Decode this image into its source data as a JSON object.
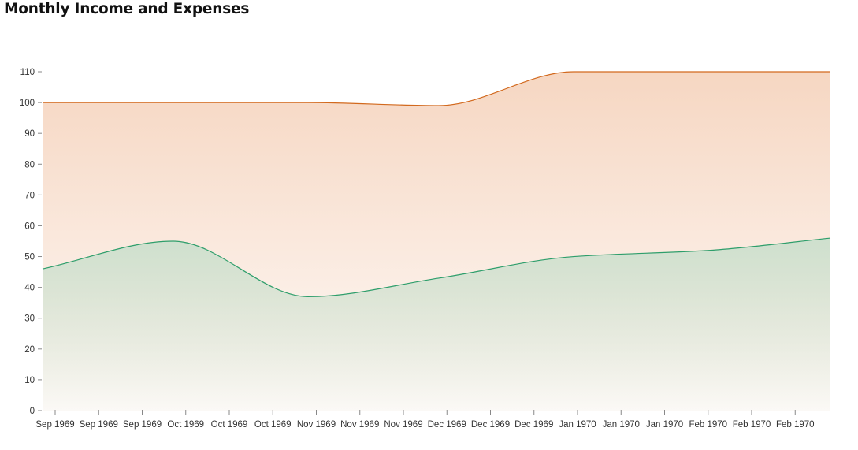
{
  "title": "Monthly Income and Expenses",
  "colors": {
    "income_line": "#d2691e",
    "income_fill": "#f5d2bb",
    "expenses_line": "#2e9e6b",
    "expenses_fill": "#c9dfcc",
    "axis": "#888888",
    "text": "#333333"
  },
  "chart_data": {
    "type": "area",
    "title": "Monthly Income and Expenses",
    "xlabel": "",
    "ylabel": "",
    "ylim": [
      0,
      110
    ],
    "yticks": [
      0,
      10,
      20,
      30,
      40,
      50,
      60,
      70,
      80,
      90,
      100,
      110
    ],
    "x_tick_labels": [
      "Sep 1969",
      "Sep 1969",
      "Sep 1969",
      "Oct 1969",
      "Oct 1969",
      "Oct 1969",
      "Nov 1969",
      "Nov 1969",
      "Nov 1969",
      "Dec 1969",
      "Dec 1969",
      "Dec 1969",
      "Jan 1970",
      "Jan 1970",
      "Jan 1970",
      "Feb 1970",
      "Feb 1970",
      "Feb 1970"
    ],
    "x": [
      "1969-09-01",
      "1969-10-01",
      "1969-11-01",
      "1969-12-01",
      "1970-01-01",
      "1970-02-01",
      "1970-03-01"
    ],
    "series": [
      {
        "values": [
          100,
          100,
          100,
          99,
          110,
          110,
          110
        ]
      },
      {
        "values": [
          46,
          55,
          37,
          43,
          50,
          52,
          56
        ]
      }
    ],
    "grid": false,
    "legend": "none"
  }
}
